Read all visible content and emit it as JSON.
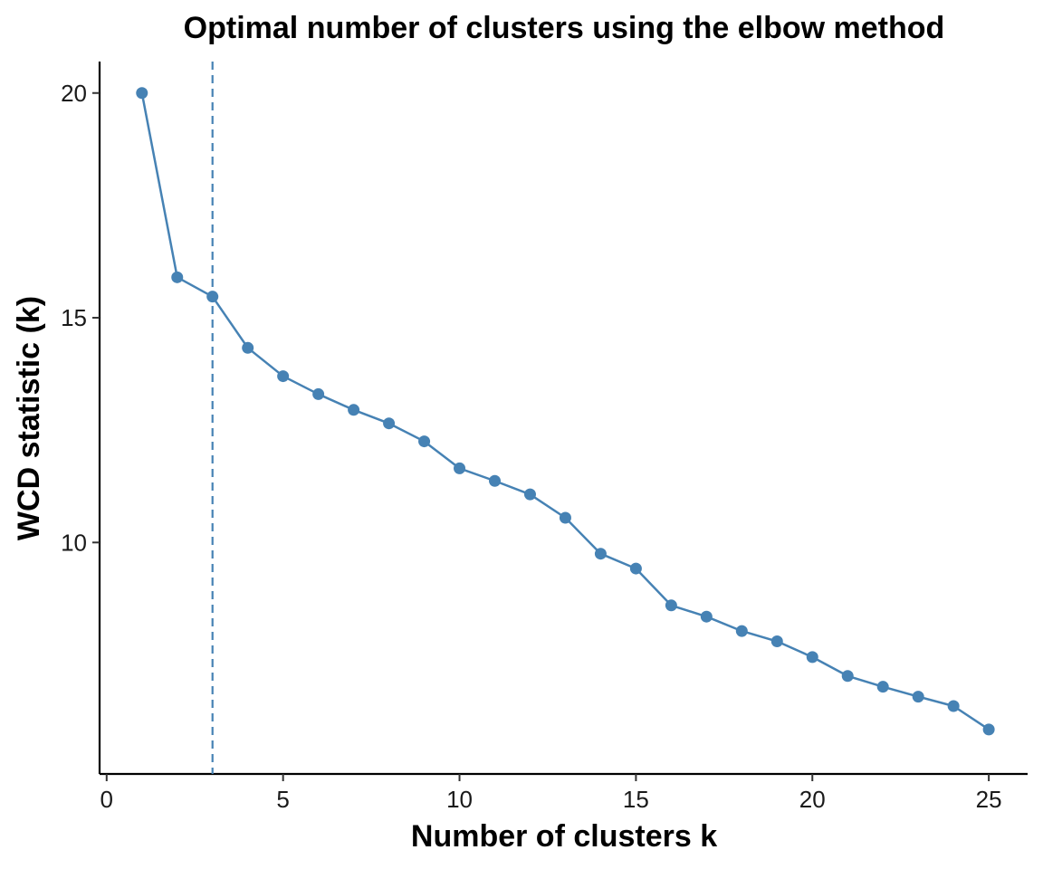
{
  "chart_data": {
    "type": "line",
    "title": "Optimal number of clusters using the elbow method",
    "xlabel": "Number of clusters k",
    "ylabel": "WCD statistic (k)",
    "xlim": [
      -0.2,
      26.1
    ],
    "ylim": [
      4.85,
      20.7
    ],
    "x_ticks": [
      0,
      5,
      10,
      15,
      20,
      25
    ],
    "y_ticks": [
      10,
      15,
      20
    ],
    "grid": false,
    "legend": "none",
    "series": [
      {
        "color": "#4682b4",
        "x": [
          1,
          2,
          3,
          4,
          5,
          6,
          7,
          8,
          9,
          10,
          11,
          12,
          13,
          14,
          15,
          16,
          17,
          18,
          19,
          20,
          21,
          22,
          23,
          24,
          25
        ],
        "y": [
          20.0,
          15.9,
          15.47,
          14.33,
          13.7,
          13.3,
          12.95,
          12.65,
          12.25,
          11.65,
          11.37,
          11.07,
          10.55,
          9.75,
          9.42,
          8.6,
          8.35,
          8.03,
          7.8,
          7.45,
          7.03,
          6.79,
          6.57,
          6.36,
          5.84
        ]
      }
    ],
    "vline": {
      "x": 3,
      "style": "dashed",
      "color": "#4682b4"
    }
  }
}
